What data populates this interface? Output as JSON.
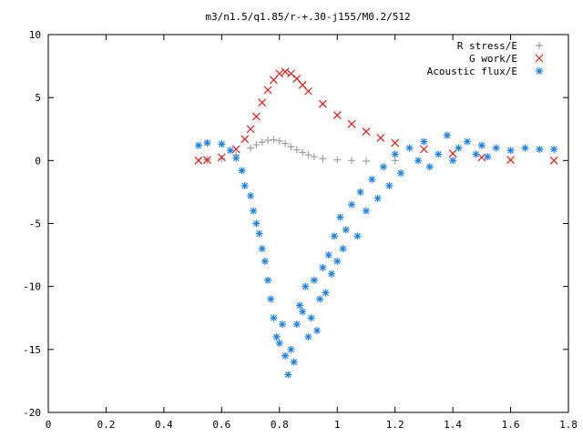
{
  "chart_data": {
    "type": "scatter",
    "title": "m3/n1.5/q1.85/r-+.30-j155/M0.2/512",
    "xlabel": "",
    "ylabel": "",
    "xlim": [
      0,
      1.8
    ],
    "ylim": [
      -20,
      10
    ],
    "xticks": [
      0,
      0.2,
      0.4,
      0.6,
      0.8,
      1,
      1.2,
      1.4,
      1.6,
      1.8
    ],
    "xtick_labels": [
      "0",
      "0.2",
      "0.4",
      "0.6",
      "0.8",
      "1",
      "1.2",
      "1.4",
      "1.6",
      "1.8"
    ],
    "yticks": [
      -20,
      -15,
      -10,
      -5,
      0,
      5,
      10
    ],
    "ytick_labels": [
      "-20",
      "-15",
      "-10",
      "-5",
      "0",
      "5",
      "10"
    ],
    "legend_position": "top-right",
    "grid": false,
    "series": [
      {
        "name": "R stress/E",
        "marker": "plus",
        "color": "#a0a0a0",
        "x": [
          0.55,
          0.6,
          0.65,
          0.7,
          0.72,
          0.74,
          0.76,
          0.78,
          0.8,
          0.82,
          0.84,
          0.86,
          0.88,
          0.9,
          0.92,
          0.95,
          1.0,
          1.05,
          1.1,
          1.2
        ],
        "y": [
          0.05,
          0.15,
          0.45,
          1.0,
          1.25,
          1.45,
          1.6,
          1.65,
          1.55,
          1.35,
          1.1,
          0.85,
          0.65,
          0.45,
          0.3,
          0.15,
          0.05,
          0.0,
          -0.05,
          0.0
        ]
      },
      {
        "name": "G work/E",
        "marker": "x",
        "color": "#e81818",
        "x": [
          0.52,
          0.55,
          0.6,
          0.65,
          0.68,
          0.7,
          0.72,
          0.74,
          0.76,
          0.78,
          0.8,
          0.82,
          0.84,
          0.86,
          0.88,
          0.9,
          0.95,
          1.0,
          1.05,
          1.1,
          1.15,
          1.2,
          1.3,
          1.4,
          1.5,
          1.6,
          1.75
        ],
        "y": [
          0.0,
          0.05,
          0.25,
          0.9,
          1.7,
          2.5,
          3.5,
          4.6,
          5.6,
          6.4,
          6.9,
          7.05,
          6.9,
          6.5,
          6.0,
          5.5,
          4.5,
          3.6,
          2.9,
          2.3,
          1.8,
          1.4,
          0.9,
          0.55,
          0.25,
          0.05,
          0.0
        ]
      },
      {
        "name": "Acoustic flux/E",
        "marker": "star",
        "color": "#1e82e8",
        "x": [
          0.52,
          0.55,
          0.6,
          0.63,
          0.65,
          0.67,
          0.68,
          0.7,
          0.71,
          0.72,
          0.73,
          0.74,
          0.75,
          0.76,
          0.77,
          0.78,
          0.79,
          0.8,
          0.81,
          0.82,
          0.83,
          0.84,
          0.85,
          0.86,
          0.87,
          0.88,
          0.89,
          0.9,
          0.91,
          0.92,
          0.93,
          0.94,
          0.95,
          0.96,
          0.97,
          0.98,
          0.99,
          1.0,
          1.01,
          1.02,
          1.03,
          1.05,
          1.07,
          1.08,
          1.1,
          1.12,
          1.14,
          1.16,
          1.18,
          1.2,
          1.22,
          1.25,
          1.28,
          1.3,
          1.32,
          1.35,
          1.38,
          1.4,
          1.42,
          1.45,
          1.48,
          1.5,
          1.52,
          1.55,
          1.6,
          1.65,
          1.7,
          1.75
        ],
        "y": [
          1.2,
          1.4,
          1.3,
          0.8,
          0.2,
          -0.8,
          -2.0,
          -2.8,
          -4.0,
          -5.0,
          -5.8,
          -7.0,
          -8.0,
          -9.5,
          -11.0,
          -12.5,
          -14.0,
          -14.5,
          -13.0,
          -15.5,
          -17.0,
          -15.0,
          -16.0,
          -13.0,
          -11.5,
          -12.0,
          -10.0,
          -14.0,
          -12.5,
          -9.5,
          -13.5,
          -11.0,
          -8.5,
          -10.5,
          -7.5,
          -9.0,
          -6.0,
          -8.0,
          -4.5,
          -7.0,
          -5.5,
          -3.5,
          -6.0,
          -2.5,
          -4.0,
          -1.5,
          -3.0,
          -0.5,
          -2.0,
          0.5,
          -1.0,
          1.0,
          0.0,
          1.5,
          -0.5,
          0.5,
          2.0,
          0.0,
          1.0,
          1.5,
          0.5,
          1.2,
          0.3,
          1.0,
          0.8,
          1.0,
          0.9,
          0.9
        ]
      }
    ]
  }
}
